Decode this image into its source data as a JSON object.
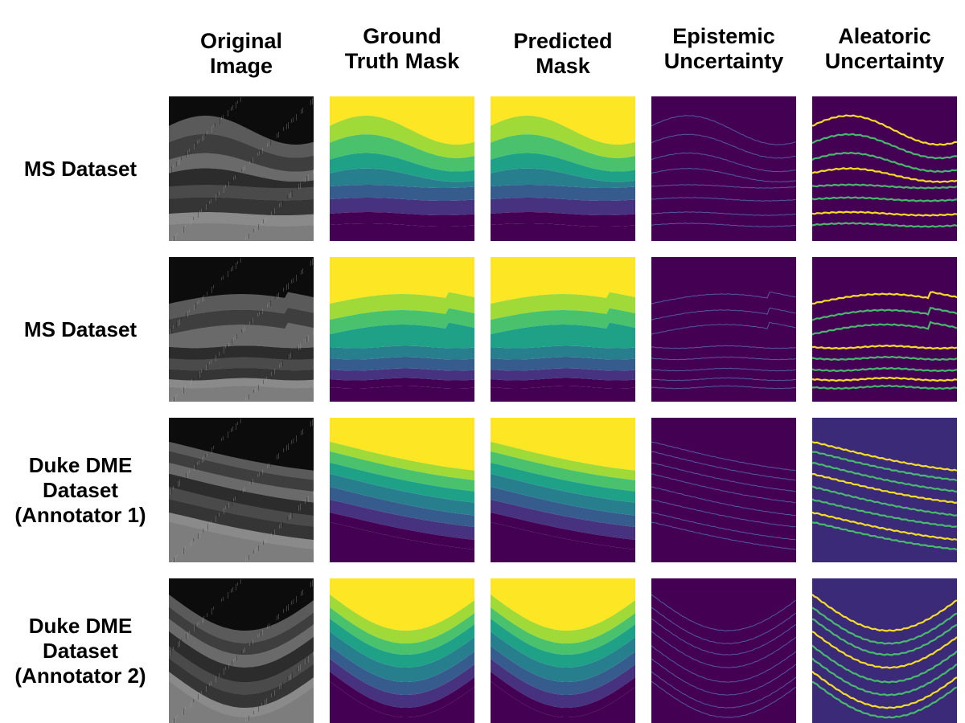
{
  "columns": [
    {
      "label": "Original\nImage"
    },
    {
      "label": "Ground\nTruth Mask"
    },
    {
      "label": "Predicted\nMask"
    },
    {
      "label": "Epistemic\nUncertainty"
    },
    {
      "label": "Aleatoric\nUncertainty"
    }
  ],
  "rows": [
    {
      "label": "MS Dataset"
    },
    {
      "label": "MS Dataset"
    },
    {
      "label": "Duke DME\nDataset\n(Annotator 1)"
    },
    {
      "label": "Duke DME\nDataset\n(Annotator 2)"
    }
  ],
  "colors": {
    "mask_layers": [
      "#fde725",
      "#a0da39",
      "#4ac16d",
      "#1fa187",
      "#277f8e",
      "#365c8d",
      "#46327e",
      "#440154"
    ],
    "uncertainty_bg": "#440154",
    "uncertainty_line": "#4ac16d",
    "uncertainty_hot": "#fde725"
  },
  "panels": [
    {
      "kind": "oct",
      "name": "oct-image"
    },
    {
      "kind": "mask",
      "name": "ground-truth-mask"
    },
    {
      "kind": "mask",
      "name": "predicted-mask"
    },
    {
      "kind": "epistemic",
      "name": "epistemic-uncertainty-map"
    },
    {
      "kind": "aleatoric",
      "name": "aleatoric-uncertainty-map"
    }
  ]
}
